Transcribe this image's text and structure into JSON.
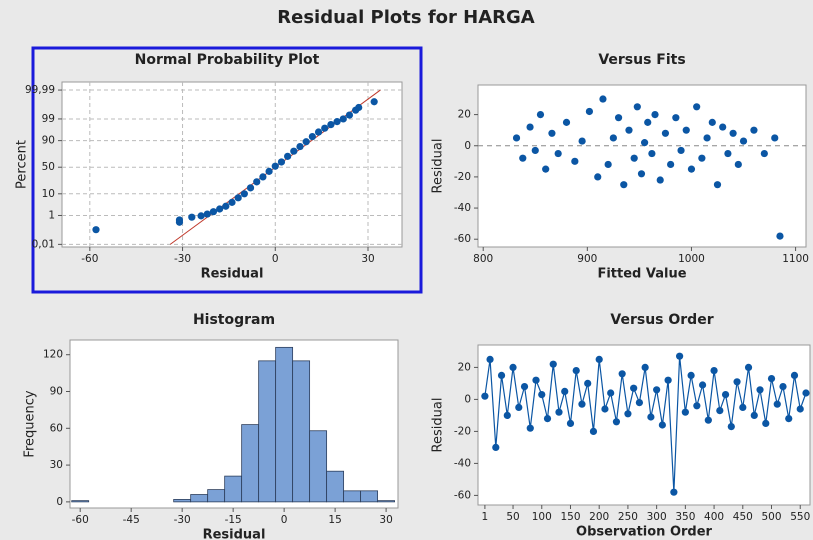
{
  "title": "Residual Plots for HARGA",
  "chart_data": [
    {
      "type": "probability",
      "title": "Normal Probability Plot",
      "xlabel": "Residual",
      "ylabel": "Percent",
      "yscale": "probability",
      "selected": true,
      "grid": true,
      "color": "#0b56a4",
      "x": [
        -58,
        -31,
        -31,
        -27,
        -24,
        -22,
        -20,
        -18,
        -16,
        -14,
        -12,
        -10,
        -8,
        -6,
        -4,
        -2,
        0,
        2,
        4,
        6,
        8,
        10,
        12,
        14,
        16,
        18,
        20,
        22,
        24,
        26,
        27,
        32
      ],
      "y": [
        0.13,
        0.4,
        0.55,
        0.8,
        0.95,
        1.2,
        1.6,
        2.2,
        3,
        4.5,
        7,
        10,
        16,
        24,
        32,
        42,
        52,
        60,
        70,
        78,
        84,
        89,
        93,
        95.5,
        97,
        98,
        98.6,
        99,
        99.4,
        99.7,
        99.8,
        99.92
      ],
      "fit_line": {
        "x": [
          -34,
          34
        ],
        "y": [
          0.01,
          99.99
        ],
        "color": "#c0392b"
      },
      "xlim": [
        -69,
        41
      ],
      "ylim": [
        0.006,
        99.998
      ],
      "xticks": [
        -60,
        -30,
        0,
        30
      ],
      "yticks": [
        {
          "value": 0.01,
          "label": "0,01"
        },
        1,
        10,
        50,
        90,
        99,
        {
          "value": 99.99,
          "label": "99,99"
        }
      ]
    },
    {
      "type": "scatter",
      "title": "Versus Fits",
      "xlabel": "Fitted Value",
      "ylabel": "Residual",
      "color": "#0b56a4",
      "x": [
        832,
        838,
        845,
        850,
        855,
        860,
        866,
        872,
        880,
        888,
        895,
        902,
        910,
        915,
        920,
        925,
        930,
        935,
        940,
        945,
        948,
        952,
        955,
        958,
        962,
        965,
        970,
        975,
        980,
        985,
        990,
        995,
        1000,
        1005,
        1010,
        1015,
        1020,
        1025,
        1030,
        1035,
        1040,
        1045,
        1050,
        1060,
        1070,
        1080,
        1085
      ],
      "y": [
        5,
        -8,
        12,
        -3,
        20,
        -15,
        8,
        -5,
        15,
        -10,
        3,
        22,
        -20,
        30,
        -12,
        5,
        18,
        -25,
        10,
        -8,
        25,
        -18,
        2,
        15,
        -5,
        20,
        -22,
        8,
        -12,
        18,
        -3,
        10,
        -15,
        25,
        -8,
        5,
        15,
        -25,
        12,
        -5,
        8,
        -12,
        3,
        10,
        -5,
        5,
        -58
      ],
      "hline": 0,
      "xlim": [
        795,
        1110
      ],
      "ylim": [
        -65,
        39
      ],
      "xticks": [
        800,
        900,
        1000,
        1100
      ],
      "yticks": [
        20,
        0,
        -20,
        -40,
        -60
      ]
    },
    {
      "type": "histogram",
      "title": "Histogram",
      "xlabel": "Residual",
      "ylabel": "Frequency",
      "color": "#7ba1d6",
      "bins": [
        -62.5,
        -57.5,
        -52.5,
        -47.5,
        -42.5,
        -37.5,
        -32.5,
        -27.5,
        -22.5,
        -17.5,
        -12.5,
        -7.5,
        -2.5,
        2.5,
        7.5,
        12.5,
        17.5,
        22.5,
        27.5,
        32.5
      ],
      "values": [
        1,
        0,
        0,
        0,
        0,
        0,
        2,
        6,
        10,
        21,
        63,
        115,
        126,
        115,
        58,
        25,
        9,
        9,
        1
      ],
      "xlim": [
        -63,
        33.5
      ],
      "ylim": [
        -5,
        132
      ],
      "xticks": [
        -60,
        -45,
        -30,
        -15,
        0,
        15,
        30
      ],
      "yticks": [
        0,
        30,
        60,
        90,
        120
      ]
    },
    {
      "type": "line",
      "title": "Versus Order",
      "xlabel": "Observation Order",
      "ylabel": "Residual",
      "color": "#0b56a4",
      "x": [
        1,
        10,
        20,
        30,
        40,
        50,
        60,
        70,
        80,
        90,
        100,
        110,
        120,
        130,
        140,
        150,
        160,
        170,
        180,
        190,
        200,
        210,
        220,
        230,
        240,
        250,
        260,
        270,
        280,
        290,
        300,
        310,
        320,
        330,
        340,
        350,
        360,
        370,
        380,
        390,
        400,
        410,
        420,
        430,
        440,
        450,
        460,
        470,
        480,
        490,
        500,
        510,
        520,
        530,
        540,
        550,
        560
      ],
      "y": [
        2,
        25,
        -30,
        15,
        -10,
        20,
        -5,
        8,
        -18,
        12,
        3,
        -12,
        22,
        -8,
        5,
        -15,
        18,
        -3,
        10,
        -20,
        25,
        -6,
        4,
        -14,
        16,
        -9,
        7,
        -2,
        20,
        -11,
        6,
        -16,
        12,
        -58,
        27,
        -8,
        15,
        -4,
        9,
        -13,
        18,
        -7,
        3,
        -17,
        11,
        -5,
        20,
        -10,
        6,
        -15,
        13,
        -3,
        8,
        -12,
        15,
        -6,
        4
      ],
      "xlim": [
        -11,
        567
      ],
      "ylim": [
        -66,
        34
      ],
      "xticks": [
        1,
        50,
        100,
        150,
        200,
        250,
        300,
        350,
        400,
        450,
        500,
        550
      ],
      "yticks": [
        20,
        0,
        -20,
        -40,
        -60
      ]
    }
  ]
}
